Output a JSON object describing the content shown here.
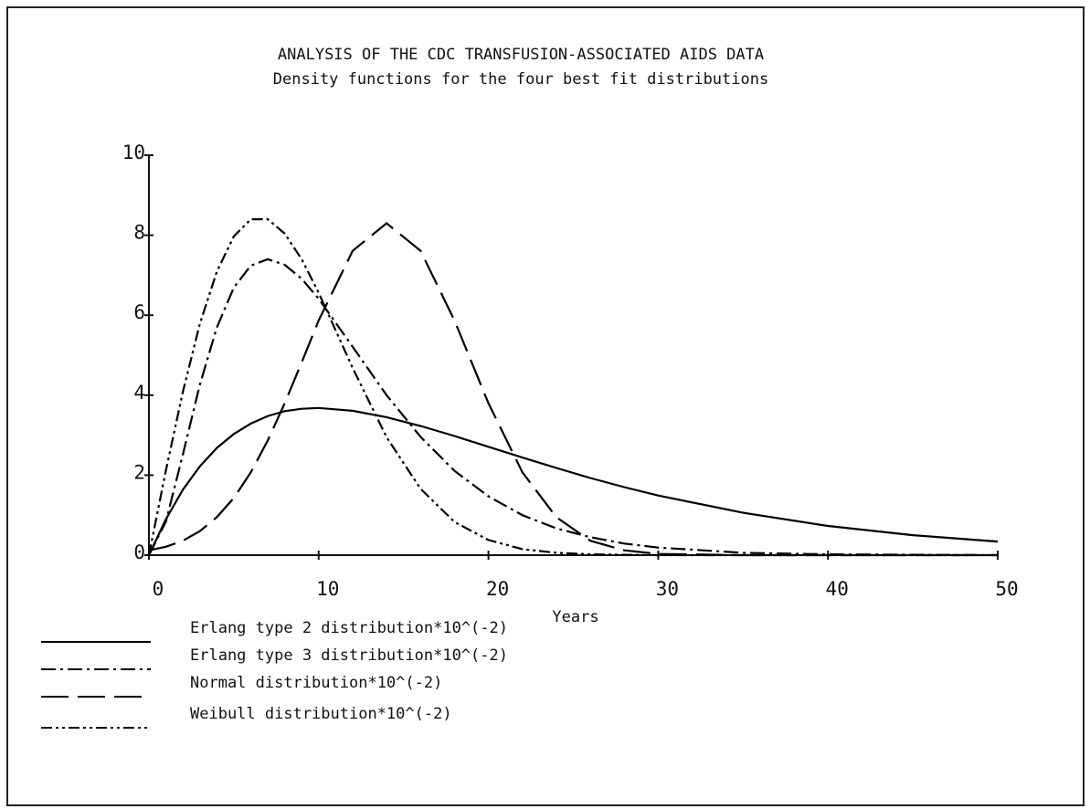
{
  "chart_data": {
    "type": "line",
    "title": "ANALYSIS OF THE CDC TRANSFUSION-ASSOCIATED AIDS DATA",
    "subtitle": "Density functions for the four best fit distributions",
    "x_label": "Years",
    "x": [
      0,
      1,
      2,
      3,
      4,
      5,
      6,
      7,
      8,
      9,
      10,
      12,
      14,
      16,
      18,
      20,
      22,
      24,
      26,
      28,
      30,
      35,
      40,
      45,
      50
    ],
    "xlim": [
      0,
      50
    ],
    "xticks": [
      0,
      10,
      20,
      30,
      40,
      50
    ],
    "ylim": [
      0,
      10
    ],
    "yticks": [
      0,
      2,
      4,
      6,
      8,
      10
    ],
    "grid": false,
    "series": [
      {
        "name": "Erlang type 2 distribution*10^(-2)",
        "color": "#000000",
        "style": "solid",
        "values": [
          0,
          0.9,
          1.64,
          2.22,
          2.68,
          3.03,
          3.29,
          3.48,
          3.6,
          3.66,
          3.68,
          3.61,
          3.45,
          3.23,
          2.98,
          2.71,
          2.44,
          2.18,
          1.93,
          1.7,
          1.49,
          1.06,
          0.73,
          0.5,
          0.34
        ]
      },
      {
        "name": "Erlang type 3 distribution*10^(-2)",
        "color": "#000000",
        "style": "dashdot",
        "values": [
          0,
          0.84,
          2.52,
          4.26,
          5.69,
          6.69,
          7.24,
          7.4,
          7.26,
          6.91,
          6.41,
          5.21,
          4.0,
          2.96,
          2.11,
          1.47,
          1.0,
          0.67,
          0.45,
          0.29,
          0.19,
          0.06,
          0.02,
          0.01,
          0
        ]
      },
      {
        "name": "Normal distribution*10^(-2)",
        "color": "#000000",
        "style": "dashed",
        "values": [
          0.12,
          0.21,
          0.36,
          0.6,
          0.95,
          1.43,
          2.07,
          2.87,
          3.8,
          4.82,
          5.87,
          7.61,
          8.3,
          7.61,
          5.87,
          3.8,
          2.07,
          0.95,
          0.36,
          0.12,
          0.03,
          0,
          0,
          0,
          0
        ]
      },
      {
        "name": "Weibull distribution*10^(-2)",
        "color": "#000000",
        "style": "dashdotdot",
        "values": [
          0,
          2.12,
          4.09,
          5.78,
          7.09,
          7.97,
          8.4,
          8.4,
          8.04,
          7.4,
          6.56,
          4.68,
          2.95,
          1.66,
          0.83,
          0.38,
          0.15,
          0.06,
          0.02,
          0.01,
          0,
          0,
          0,
          0,
          0
        ]
      }
    ]
  }
}
